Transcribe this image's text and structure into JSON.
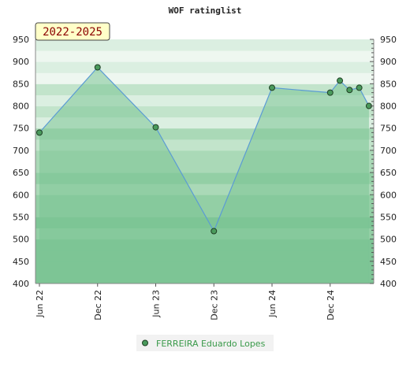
{
  "chart_data": {
    "type": "area",
    "title": "WOF ratinglist",
    "period_label": "2022-2025",
    "ylim": [
      400,
      950
    ],
    "y_ticks": [
      400,
      450,
      500,
      550,
      600,
      650,
      700,
      750,
      800,
      850,
      900,
      950
    ],
    "x_ticks": [
      "Jun 22",
      "Dec 22",
      "Jun 23",
      "Dec 23",
      "Jun 24",
      "Dec 24"
    ],
    "grid": false,
    "legend_position": "bottom-center",
    "series": [
      {
        "name": "FERREIRA Eduardo Lopes",
        "color": "#5b9bd5",
        "fill": "#7cc495",
        "points": [
          {
            "x": "2022-06",
            "y": 740
          },
          {
            "x": "2022-12",
            "y": 887
          },
          {
            "x": "2023-06",
            "y": 752
          },
          {
            "x": "2023-12",
            "y": 518
          },
          {
            "x": "2024-06",
            "y": 841
          },
          {
            "x": "2024-12",
            "y": 830
          },
          {
            "x": "2025-01",
            "y": 857
          },
          {
            "x": "2025-02",
            "y": 836
          },
          {
            "x": "2025-03",
            "y": 841
          },
          {
            "x": "2025-04",
            "y": 800
          }
        ]
      }
    ]
  }
}
